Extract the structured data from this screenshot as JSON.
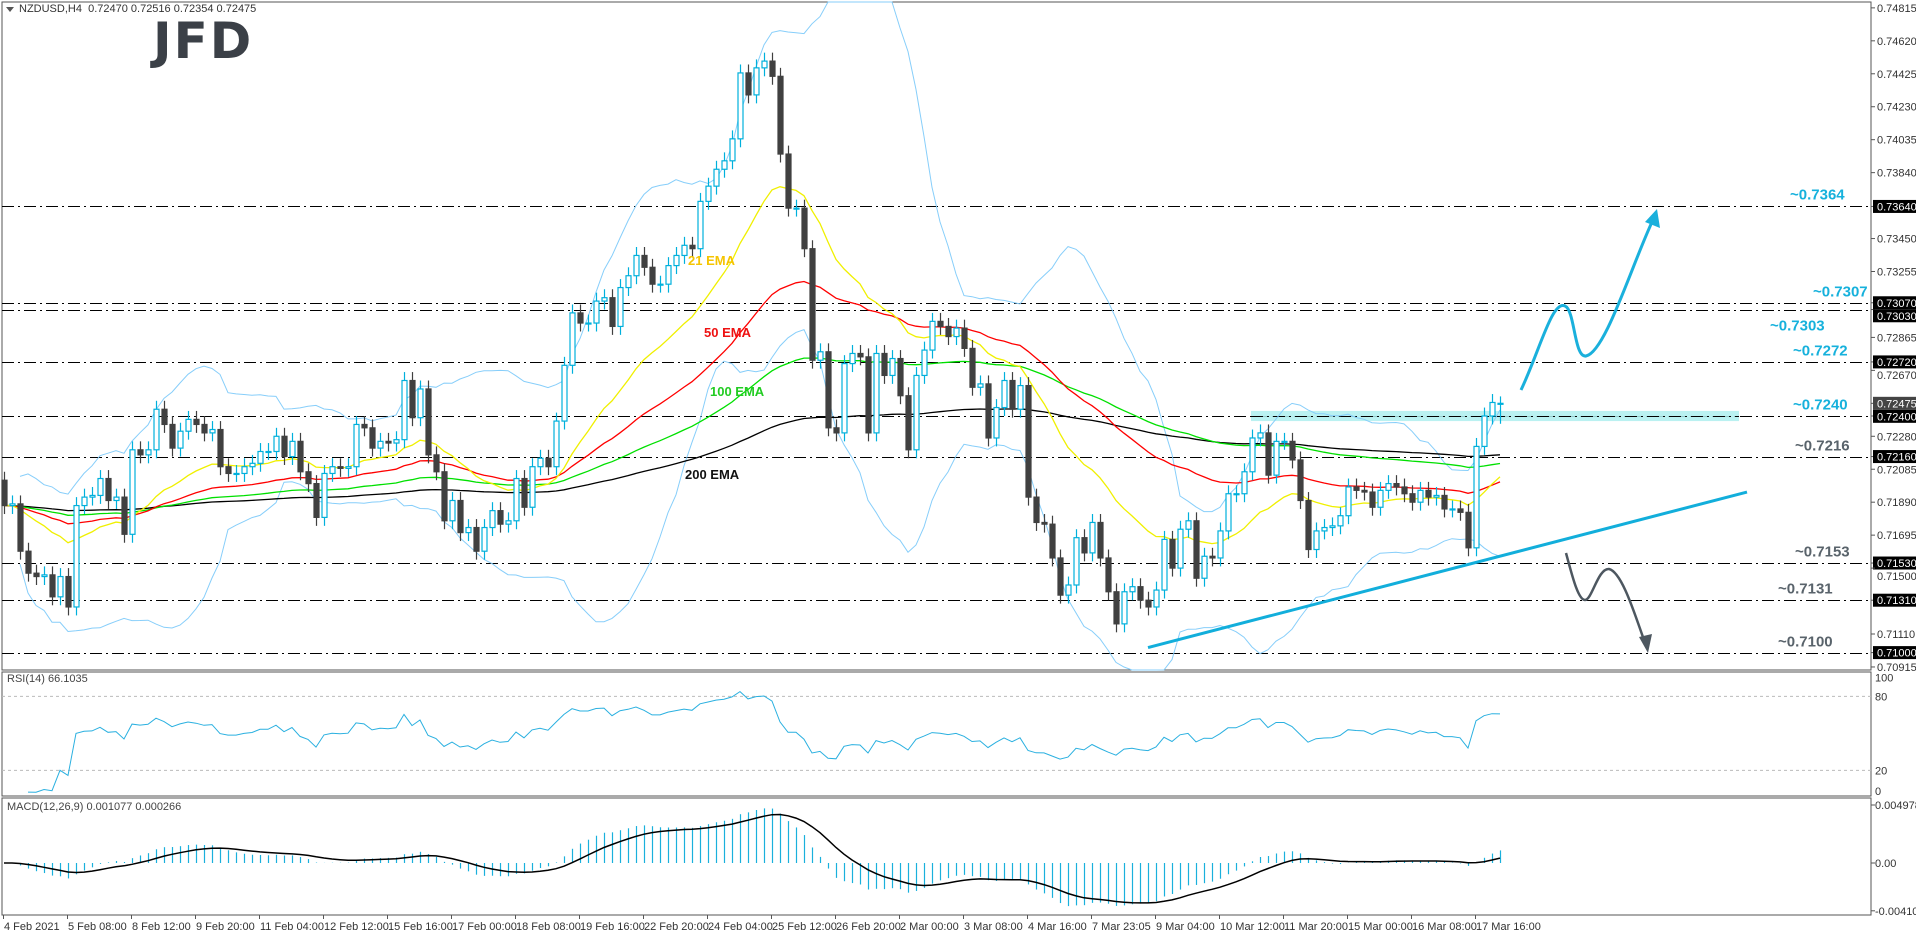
{
  "header": {
    "symbol": "NZDUSD,H4",
    "ohlc": "0.72470 0.72516 0.72354 0.72475"
  },
  "logo": "JFD",
  "colors": {
    "bull": "#00b0dc",
    "bear": "#404040",
    "ema21": "#ffff00",
    "ema50": "#ff0000",
    "ema100": "#00ff00",
    "ema200": "#000000",
    "bands": "#87cefa",
    "annotation_up": "#16b1dc",
    "annotation_down": "#59636b",
    "zone": "#aeeeee"
  },
  "ema_labels": {
    "ema21": "21 EMA",
    "ema50": "50 EMA",
    "ema100": "100 EMA",
    "ema200": "200 EMA"
  },
  "rsi": {
    "label": "RSI(14) 66.1035",
    "levels": [
      80,
      20
    ],
    "axis": [
      "100",
      "80",
      "20",
      "0"
    ]
  },
  "macd": {
    "label": "MACD(12,26,9) 0.001077 0.000266",
    "axis": [
      "0.004978",
      "0.00",
      "-0.004103"
    ]
  },
  "chart_data": {
    "type": "candlestick",
    "title": "NZDUSD,H4",
    "ylim": [
      0.70915,
      0.74815
    ],
    "grid": false,
    "price_axis": [
      {
        "v": 0.74815,
        "t": "0.74815"
      },
      {
        "v": 0.7462,
        "t": "0.74620"
      },
      {
        "v": 0.74425,
        "t": "0.74425"
      },
      {
        "v": 0.7423,
        "t": "0.74230"
      },
      {
        "v": 0.74035,
        "t": "0.74035"
      },
      {
        "v": 0.7384,
        "t": "0.73840"
      },
      {
        "v": 0.7364,
        "t": "0.73640",
        "hl": "black"
      },
      {
        "v": 0.7345,
        "t": "0.73450"
      },
      {
        "v": 0.73255,
        "t": "0.73255"
      },
      {
        "v": 0.7307,
        "t": "0.73070",
        "hl": "black"
      },
      {
        "v": 0.7303,
        "t": "0.73030",
        "hl": "black"
      },
      {
        "v": 0.72865,
        "t": "0.72865"
      },
      {
        "v": 0.7272,
        "t": "0.72720",
        "hl": "black"
      },
      {
        "v": 0.7267,
        "t": "0.72670"
      },
      {
        "v": 0.72475,
        "t": "0.72475",
        "hl": "grey"
      },
      {
        "v": 0.724,
        "t": "0.72400",
        "hl": "black"
      },
      {
        "v": 0.7228,
        "t": "0.72280"
      },
      {
        "v": 0.7216,
        "t": "0.72160",
        "hl": "black"
      },
      {
        "v": 0.72085,
        "t": "0.72085"
      },
      {
        "v": 0.7189,
        "t": "0.71890"
      },
      {
        "v": 0.71695,
        "t": "0.71695"
      },
      {
        "v": 0.715,
        "t": "0.71500"
      },
      {
        "v": 0.7153,
        "t": "0.71530",
        "hl": "black"
      },
      {
        "v": 0.7131,
        "t": "0.71310",
        "hl": "black"
      },
      {
        "v": 0.7111,
        "t": "0.71110"
      },
      {
        "v": 0.71,
        "t": "0.71000",
        "hl": "black"
      },
      {
        "v": 0.70915,
        "t": "0.70915"
      }
    ],
    "time_labels": [
      "4 Feb 2021",
      "5 Feb 08:00",
      "8 Feb 12:00",
      "9 Feb 20:00",
      "11 Feb 04:00",
      "12 Feb 12:00",
      "15 Feb 16:00",
      "17 Feb 00:00",
      "18 Feb 08:00",
      "19 Feb 16:00",
      "22 Feb 20:00",
      "24 Feb 04:00",
      "25 Feb 12:00",
      "26 Feb 20:00",
      "2 Mar 00:00",
      "3 Mar 08:00",
      "4 Mar 16:00",
      "7 Mar 23:05",
      "9 Mar 04:00",
      "10 Mar 12:00",
      "11 Mar 20:00",
      "15 Mar 00:00",
      "16 Mar 08:00",
      "17 Mar 16:00"
    ],
    "close": [
      0.7187,
      0.7188,
      0.716,
      0.7147,
      0.7145,
      0.7146,
      0.7133,
      0.7145,
      0.7127,
      0.7187,
      0.7192,
      0.7193,
      0.7203,
      0.719,
      0.7192,
      0.717,
      0.722,
      0.7217,
      0.722,
      0.7244,
      0.7235,
      0.7221,
      0.7231,
      0.7238,
      0.7235,
      0.723,
      0.7232,
      0.721,
      0.7206,
      0.7206,
      0.721,
      0.7212,
      0.7219,
      0.7219,
      0.7228,
      0.7216,
      0.7225,
      0.7207,
      0.72,
      0.718,
      0.7206,
      0.721,
      0.7209,
      0.721,
      0.7235,
      0.7233,
      0.7221,
      0.7225,
      0.7224,
      0.7226,
      0.7261,
      0.7239,
      0.7256,
      0.7217,
      0.7207,
      0.7178,
      0.719,
      0.7171,
      0.7174,
      0.716,
      0.7174,
      0.7184,
      0.7176,
      0.7178,
      0.7203,
      0.7186,
      0.721,
      0.7215,
      0.721,
      0.7237,
      0.727,
      0.7301,
      0.7295,
      0.7295,
      0.7308,
      0.731,
      0.7293,
      0.7316,
      0.7323,
      0.7335,
      0.7328,
      0.7318,
      0.7318,
      0.7329,
      0.7335,
      0.7341,
      0.7339,
      0.7367,
      0.7376,
      0.7386,
      0.7391,
      0.7404,
      0.7443,
      0.743,
      0.7446,
      0.745,
      0.7441,
      0.7395,
      0.7363,
      0.7363,
      0.7339,
      0.7273,
      0.7278,
      0.7233,
      0.723,
      0.7271,
      0.7277,
      0.7275,
      0.723,
      0.7277,
      0.7264,
      0.7274,
      0.7252,
      0.722,
      0.7264,
      0.7279,
      0.7296,
      0.7293,
      0.7287,
      0.7292,
      0.728,
      0.7257,
      0.7259,
      0.7227,
      0.7245,
      0.7261,
      0.7244,
      0.7258,
      0.7192,
      0.7177,
      0.7176,
      0.7156,
      0.7134,
      0.714,
      0.7168,
      0.7159,
      0.7177,
      0.7156,
      0.7136,
      0.7117,
      0.7136,
      0.7139,
      0.7131,
      0.7127,
      0.7137,
      0.7167,
      0.715,
      0.7173,
      0.7178,
      0.7144,
      0.7157,
      0.7156,
      0.7172,
      0.7194,
      0.7194,
      0.7207,
      0.7227,
      0.723,
      0.7205,
      0.7225,
      0.7225,
      0.7214,
      0.719,
      0.7161,
      0.7172,
      0.7174,
      0.7175,
      0.7181,
      0.7198,
      0.7196,
      0.7195,
      0.7186,
      0.7196,
      0.72,
      0.7198,
      0.7194,
      0.7189,
      0.7196,
      0.7192,
      0.7193,
      0.7185,
      0.7185,
      0.7183,
      0.7162,
      0.7222,
      0.724,
      0.7248,
      0.72475
    ],
    "last_bar": {
      "open": 0.7247,
      "high": 0.72516,
      "low": 0.72354,
      "close": 0.72475
    },
    "indicators": [
      "EMA 21",
      "EMA 50",
      "EMA 100",
      "EMA 200",
      "Bollinger Bands",
      "RSI(14)",
      "MACD(12,26,9)"
    ],
    "levels": [
      {
        "price": 0.7364,
        "label": "~0.7364",
        "tone": "up"
      },
      {
        "price": 0.7307,
        "label": "~0.7307",
        "tone": "up"
      },
      {
        "price": 0.7303,
        "label": "~0.7303",
        "tone": "up"
      },
      {
        "price": 0.7272,
        "label": "~0.7272",
        "tone": "up"
      },
      {
        "price": 0.724,
        "label": "~0.7240",
        "tone": "up"
      },
      {
        "price": 0.7216,
        "label": "~0.7216",
        "tone": "down"
      },
      {
        "price": 0.7153,
        "label": "~0.7153",
        "tone": "down"
      },
      {
        "price": 0.7131,
        "label": "~0.7131",
        "tone": "down"
      },
      {
        "price": 0.71,
        "label": "~0.7100",
        "tone": "down"
      }
    ],
    "resistance_zone": [
      0.7237,
      0.7243
    ],
    "trendline": {
      "from": {
        "bar": 143,
        "price": 0.7103
      },
      "to": {
        "bar": 218,
        "price": 0.7195
      }
    }
  }
}
